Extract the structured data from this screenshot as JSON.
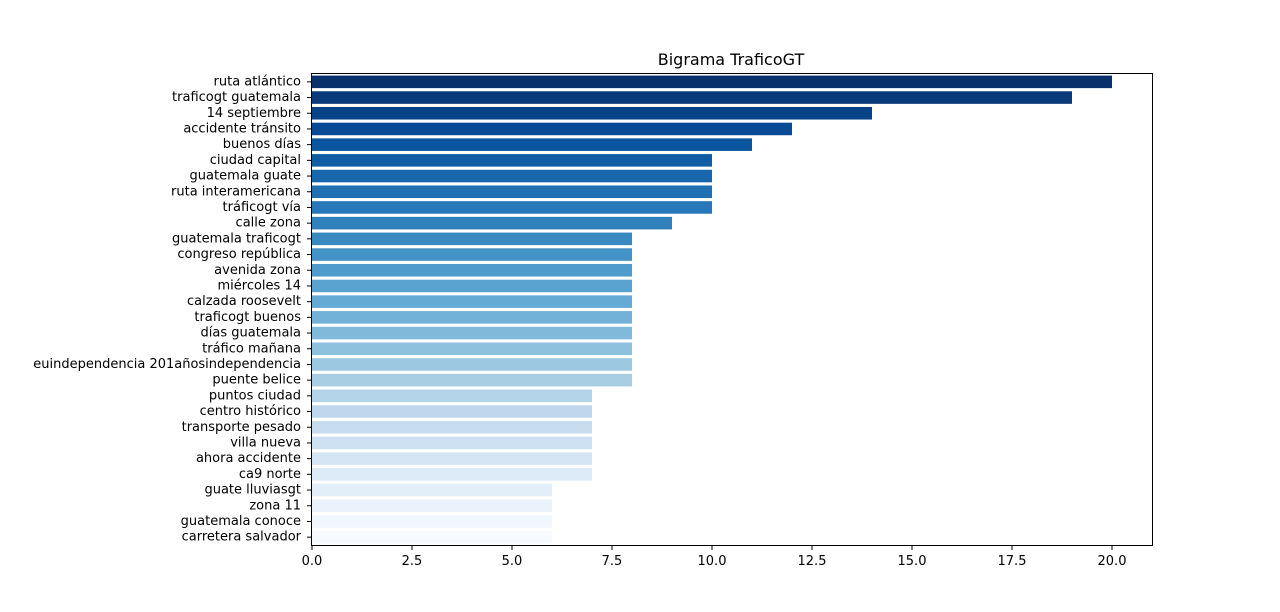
{
  "chart_data": {
    "type": "bar",
    "orientation": "horizontal",
    "title": "Bigrama TraficoGT",
    "xlabel": "",
    "ylabel": "",
    "xlim": [
      0,
      21
    ],
    "x_ticks": [
      0.0,
      2.5,
      5.0,
      7.5,
      10.0,
      12.5,
      15.0,
      17.5,
      20.0
    ],
    "x_tick_labels": [
      "0.0",
      "2.5",
      "5.0",
      "7.5",
      "10.0",
      "12.5",
      "15.0",
      "17.5",
      "20.0"
    ],
    "grid": false,
    "legend": "none",
    "colormap": "Blues_r",
    "color_dark": "#08306b",
    "color_light": "#f7fbff",
    "categories": [
      "ruta atlántico",
      "traficogt guatemala",
      "14 septiembre",
      "accidente tránsito",
      "buenos días",
      "ciudad capital",
      "guatemala guate",
      "ruta interamericana",
      "tráficogt vía",
      "calle zona",
      "guatemala traficogt",
      "congreso república",
      "avenida zona",
      "miércoles 14",
      "calzada roosevelt",
      "traficogt buenos",
      "días guatemala",
      "tráfico mañana",
      "euindependencia 201añosindependencia",
      "puente belice",
      "puntos ciudad",
      "centro histórico",
      "transporte pesado",
      "villa nueva",
      "ahora accidente",
      "ca9 norte",
      "guate lluviasgt",
      "zona 11",
      "guatemala conoce",
      "carretera salvador"
    ],
    "values": [
      20,
      19,
      14,
      12,
      11,
      10,
      10,
      10,
      10,
      9,
      8,
      8,
      8,
      8,
      8,
      8,
      8,
      8,
      8,
      8,
      7,
      7,
      7,
      7,
      7,
      7,
      6,
      6,
      6,
      6
    ]
  }
}
